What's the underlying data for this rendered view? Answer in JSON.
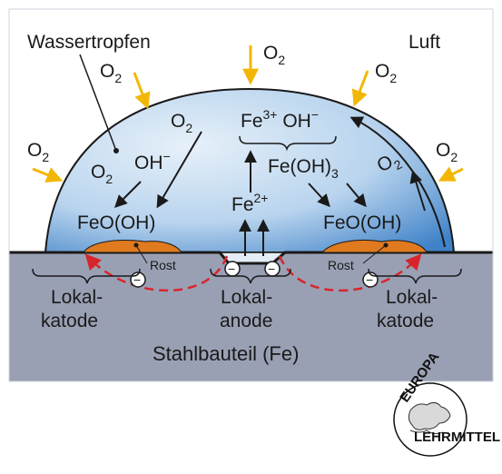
{
  "labels": {
    "droplet": "Wassertropfen",
    "air": "Luft",
    "oxygen": "O",
    "oxygen_sub": "2",
    "hydroxide": "OH",
    "hydroxide_sup": "−",
    "fe3": "Fe",
    "fe3_sup": "3+",
    "oh_minus": " OH",
    "oh_minus_sup": "−",
    "iron_hydroxide": "Fe(OH)",
    "iron_hydroxide_sub": "3",
    "fe2": "Fe",
    "fe2_sup": "2+",
    "feooh_left": "FeO(OH)",
    "feooh_right": "FeO(OH)",
    "rust_left": "Rost",
    "rust_right": "Rost",
    "electron": "−",
    "local_cathode_left_1": "Lokal-",
    "local_cathode_left_2": "katode",
    "local_anode_1": "Lokal-",
    "local_anode_2": "anode",
    "local_cathode_right_1": "Lokal-",
    "local_cathode_right_2": "katode",
    "component": "Stahlbauteil (Fe)"
  },
  "logo": {
    "top": "EUROPA",
    "bottom": "LEHRMITTEL"
  },
  "colors": {
    "steel": "#9aa0b4",
    "water_light": "#dbe9f6",
    "water_dark": "#4f8fd0",
    "rust": "#e07a1f",
    "oxygen_arrow": "#f2b705",
    "electron_path": "#d7262b"
  }
}
